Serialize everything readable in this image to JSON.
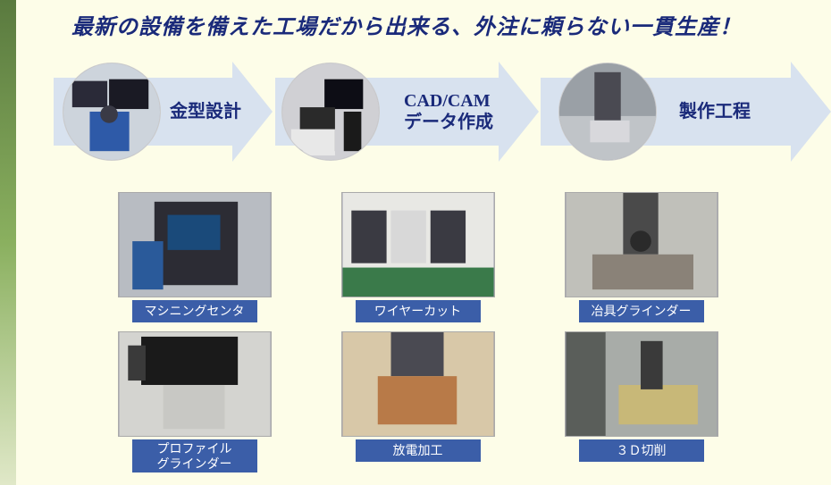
{
  "title": "最新の設備を備えた工場だから出来る、外注に頼らない一貫生産！",
  "flow": {
    "arrow_color": "#d8e2ef",
    "label_color": "#1a2a7a",
    "steps": [
      {
        "label": "金型設計"
      },
      {
        "label": "CAD/CAM\nデータ作成"
      },
      {
        "label": "製作工程"
      }
    ]
  },
  "equipment": {
    "label_bg": "#3b5ea8",
    "label_fg": "#ffffff",
    "items": [
      {
        "label": "マシニングセンタ"
      },
      {
        "label": "ワイヤーカット"
      },
      {
        "label": "冶具グラインダー"
      },
      {
        "label": "プロファイル\nグラインダー"
      },
      {
        "label": "放電加工"
      },
      {
        "label": "３Ｄ切削"
      }
    ]
  },
  "colors": {
    "page_bg": "#fdfde8",
    "title_color": "#1a2a7a",
    "stripe_top": "#5a7a3f",
    "stripe_bottom": "#e0e8c8"
  }
}
